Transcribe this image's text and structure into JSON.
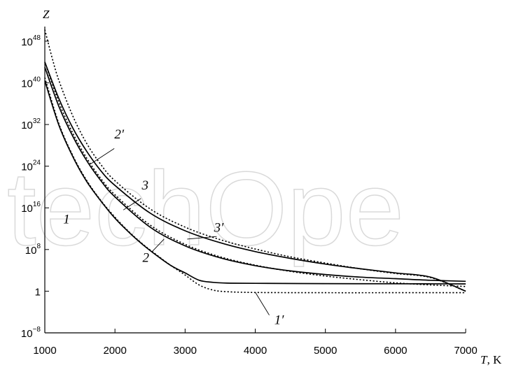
{
  "chart_data": {
    "type": "line",
    "title": "",
    "xlabel": "T",
    "xlabel_unit": ", K",
    "ylabel": "Z",
    "y_scale": "log",
    "xlim": [
      1000,
      7000
    ],
    "ylim_log10": [
      -8,
      50
    ],
    "grid": false,
    "x_ticks": [
      1000,
      2000,
      3000,
      4000,
      5000,
      6000,
      7000
    ],
    "x_tick_labels": [
      "1000",
      "2000",
      "3000",
      "4000",
      "5000",
      "6000",
      "7000"
    ],
    "y_ticks": [
      {
        "base": "10",
        "exp": "−8",
        "log": -8
      },
      {
        "base": "1",
        "exp": "",
        "log": 0
      },
      {
        "base": "10",
        "exp": "8",
        "log": 8
      },
      {
        "base": "10",
        "exp": "16",
        "log": 16
      },
      {
        "base": "10",
        "exp": "24",
        "log": 24
      },
      {
        "base": "10",
        "exp": "32",
        "log": 32
      },
      {
        "base": "10",
        "exp": "40",
        "log": 40
      },
      {
        "base": "10",
        "exp": "48",
        "log": 48
      }
    ],
    "watermark": "techOpe",
    "series": [
      {
        "name": "1",
        "style": "solid",
        "color": "#000000",
        "x": [
          1000,
          1200,
          1400,
          1600,
          1800,
          2000,
          2200,
          2400,
          2600,
          2800,
          3000,
          3200,
          3400,
          3600,
          4000,
          5000,
          6000,
          7000
        ],
        "log10_y": [
          40.4,
          31.9,
          25.8,
          21.0,
          17.3,
          14.0,
          11.3,
          8.9,
          6.8,
          4.9,
          3.5,
          2.1,
          1.7,
          1.55,
          1.5,
          1.45,
          1.42,
          1.4
        ]
      },
      {
        "name": "1′",
        "style": "dotted",
        "color": "#000000",
        "x": [
          1000,
          1200,
          1400,
          1600,
          1800,
          2000,
          2200,
          2400,
          2600,
          2800,
          3000,
          3200,
          3400,
          3600,
          4000,
          5000,
          6000,
          7000
        ],
        "log10_y": [
          41.0,
          32.2,
          26.0,
          21.2,
          17.4,
          14.2,
          11.4,
          9.0,
          6.9,
          4.9,
          3.1,
          1.2,
          0.2,
          -0.1,
          -0.25,
          -0.3,
          -0.3,
          -0.3
        ]
      },
      {
        "name": "2",
        "style": "solid",
        "color": "#000000",
        "x": [
          1000,
          1200,
          1400,
          1600,
          1800,
          2000,
          2500,
          3000,
          3500,
          4000,
          4500,
          5000,
          5500,
          6000,
          6500,
          7000
        ],
        "log10_y": [
          43.0,
          35.5,
          29.7,
          25.0,
          21.2,
          18.1,
          12.3,
          8.7,
          6.4,
          4.9,
          3.9,
          3.2,
          2.7,
          2.4,
          2.1,
          1.9
        ]
      },
      {
        "name": "2′",
        "style": "dotted",
        "color": "#000000",
        "x": [
          1000,
          1200,
          1400,
          1600,
          1800,
          2000,
          2500,
          3000,
          3500,
          4000,
          4500,
          5000,
          5500,
          6000,
          6500,
          7000
        ],
        "log10_y": [
          44.0,
          36.3,
          30.3,
          25.5,
          21.6,
          18.5,
          12.7,
          9.0,
          6.6,
          5.0,
          3.8,
          2.9,
          2.2,
          1.6,
          1.2,
          0.9
        ]
      },
      {
        "name": "3",
        "style": "solid",
        "color": "#000000",
        "x": [
          1000,
          1200,
          1400,
          1600,
          1800,
          2000,
          2500,
          3000,
          3500,
          4000,
          4500,
          5000,
          5500,
          6000,
          6500,
          7000
        ],
        "log10_y": [
          44.0,
          37.0,
          31.3,
          26.8,
          23.1,
          20.3,
          15.0,
          11.6,
          9.3,
          7.6,
          6.3,
          5.2,
          4.3,
          3.5,
          2.7,
          0.0
        ]
      },
      {
        "name": "3′",
        "style": "dotted",
        "color": "#000000",
        "x": [
          1000,
          1100,
          1200,
          1400,
          1600,
          1800,
          2000,
          2500,
          3000,
          3500,
          4000,
          4500,
          5000,
          5500,
          6000,
          6500,
          7000
        ],
        "log10_y": [
          50.2,
          45.0,
          40.5,
          33.6,
          28.3,
          24.3,
          21.2,
          15.8,
          12.3,
          9.9,
          8.1,
          6.6,
          5.4,
          4.3,
          3.4,
          2.6,
          0.0
        ]
      }
    ],
    "annotations": [
      {
        "text": "1",
        "x": 1310,
        "log10_y": 13.0,
        "leader": null
      },
      {
        "text": "1′",
        "x": 4340,
        "log10_y": -6.3,
        "leader": [
          [
            4200,
            -4.6
          ],
          [
            4000,
            -0.2
          ]
        ]
      },
      {
        "text": "2",
        "x": 2440,
        "log10_y": 5.6,
        "leader": [
          [
            2530,
            7.6
          ],
          [
            2700,
            10.0
          ]
        ]
      },
      {
        "text": "2′",
        "x": 2060,
        "log10_y": 29.3,
        "leader": [
          [
            1990,
            27.4
          ],
          [
            1650,
            24.4
          ]
        ]
      },
      {
        "text": "3",
        "x": 2430,
        "log10_y": 19.5,
        "leader": [
          [
            2370,
            17.8
          ],
          [
            2120,
            15.6
          ]
        ]
      },
      {
        "text": "3′",
        "x": 3480,
        "log10_y": 11.4,
        "leader": [
          [
            3450,
            10.5
          ],
          [
            3030,
            10.0
          ]
        ]
      }
    ]
  }
}
